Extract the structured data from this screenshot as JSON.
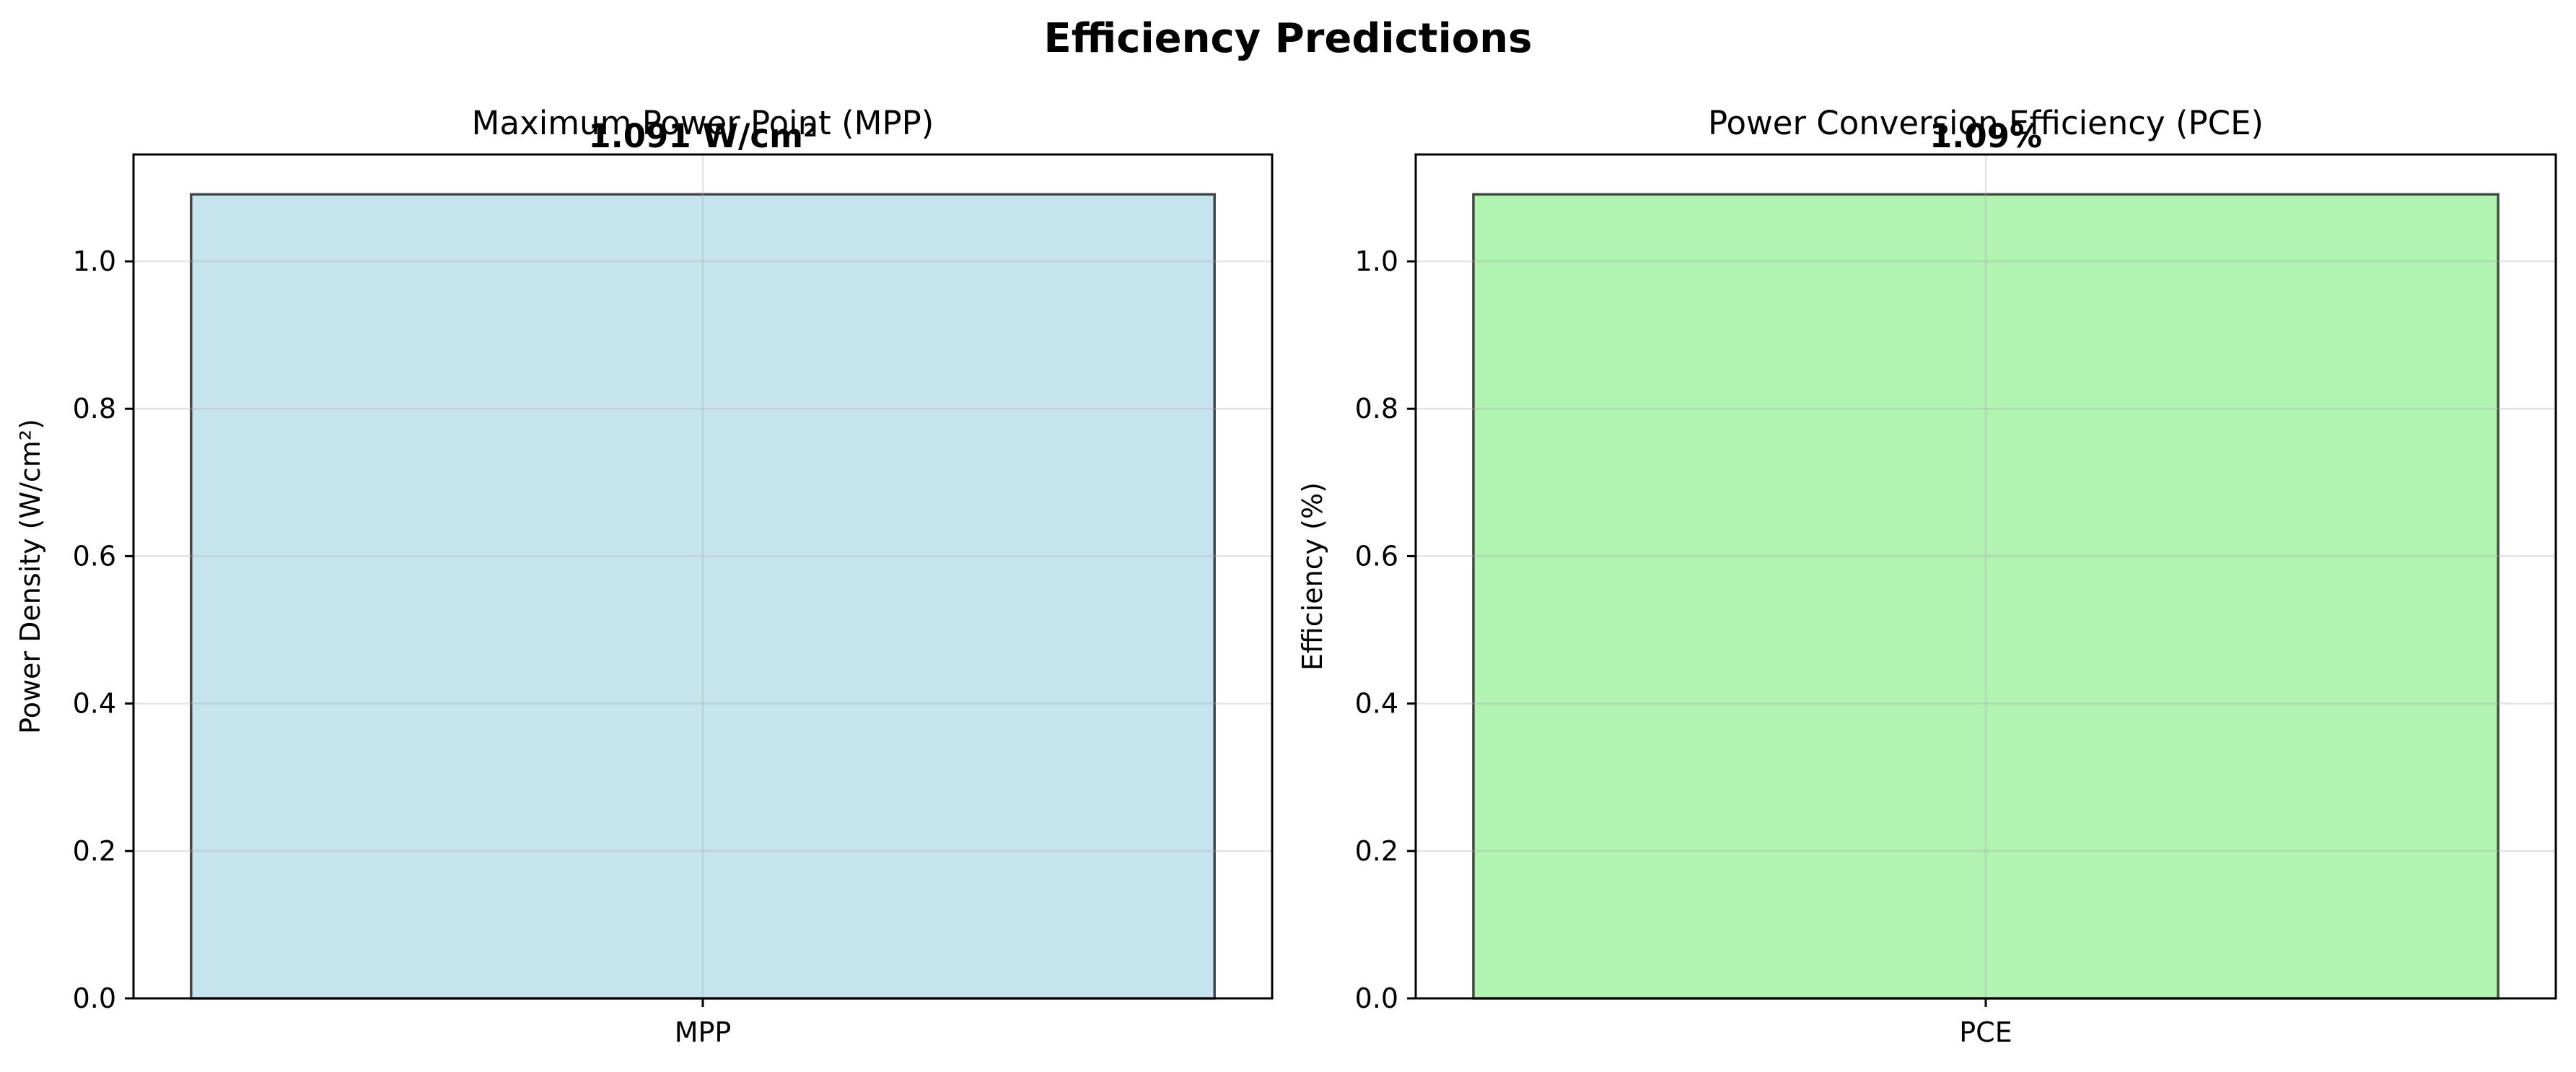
{
  "figure": {
    "title": "Efficiency Predictions"
  },
  "chart_data": [
    {
      "type": "bar",
      "title": "Maximum Power Point (MPP)",
      "categories": [
        "MPP"
      ],
      "values": [
        1.091
      ],
      "value_label": "1.091 W/cm²",
      "xlabel": "",
      "ylabel": "Power Density (W/cm²)",
      "ylim": [
        0,
        1.145
      ],
      "yticks": [
        "0.0",
        "0.2",
        "0.4",
        "0.6",
        "0.8",
        "1.0"
      ],
      "ytick_values": [
        0,
        0.2,
        0.4,
        0.6,
        0.8,
        1.0
      ],
      "grid": true,
      "bar_color": "#add8e6",
      "edge_color": "#000000"
    },
    {
      "type": "bar",
      "title": "Power Conversion Efficiency (PCE)",
      "categories": [
        "PCE"
      ],
      "values": [
        1.091
      ],
      "value_label": "1.09%",
      "xlabel": "",
      "ylabel": "Efficiency (%)",
      "ylim": [
        0,
        1.145
      ],
      "yticks": [
        "0.0",
        "0.2",
        "0.4",
        "0.6",
        "0.8",
        "1.0"
      ],
      "ytick_values": [
        0,
        0.2,
        0.4,
        0.6,
        0.8,
        1.0
      ],
      "grid": true,
      "bar_color": "#90ee90",
      "edge_color": "#000000"
    }
  ]
}
